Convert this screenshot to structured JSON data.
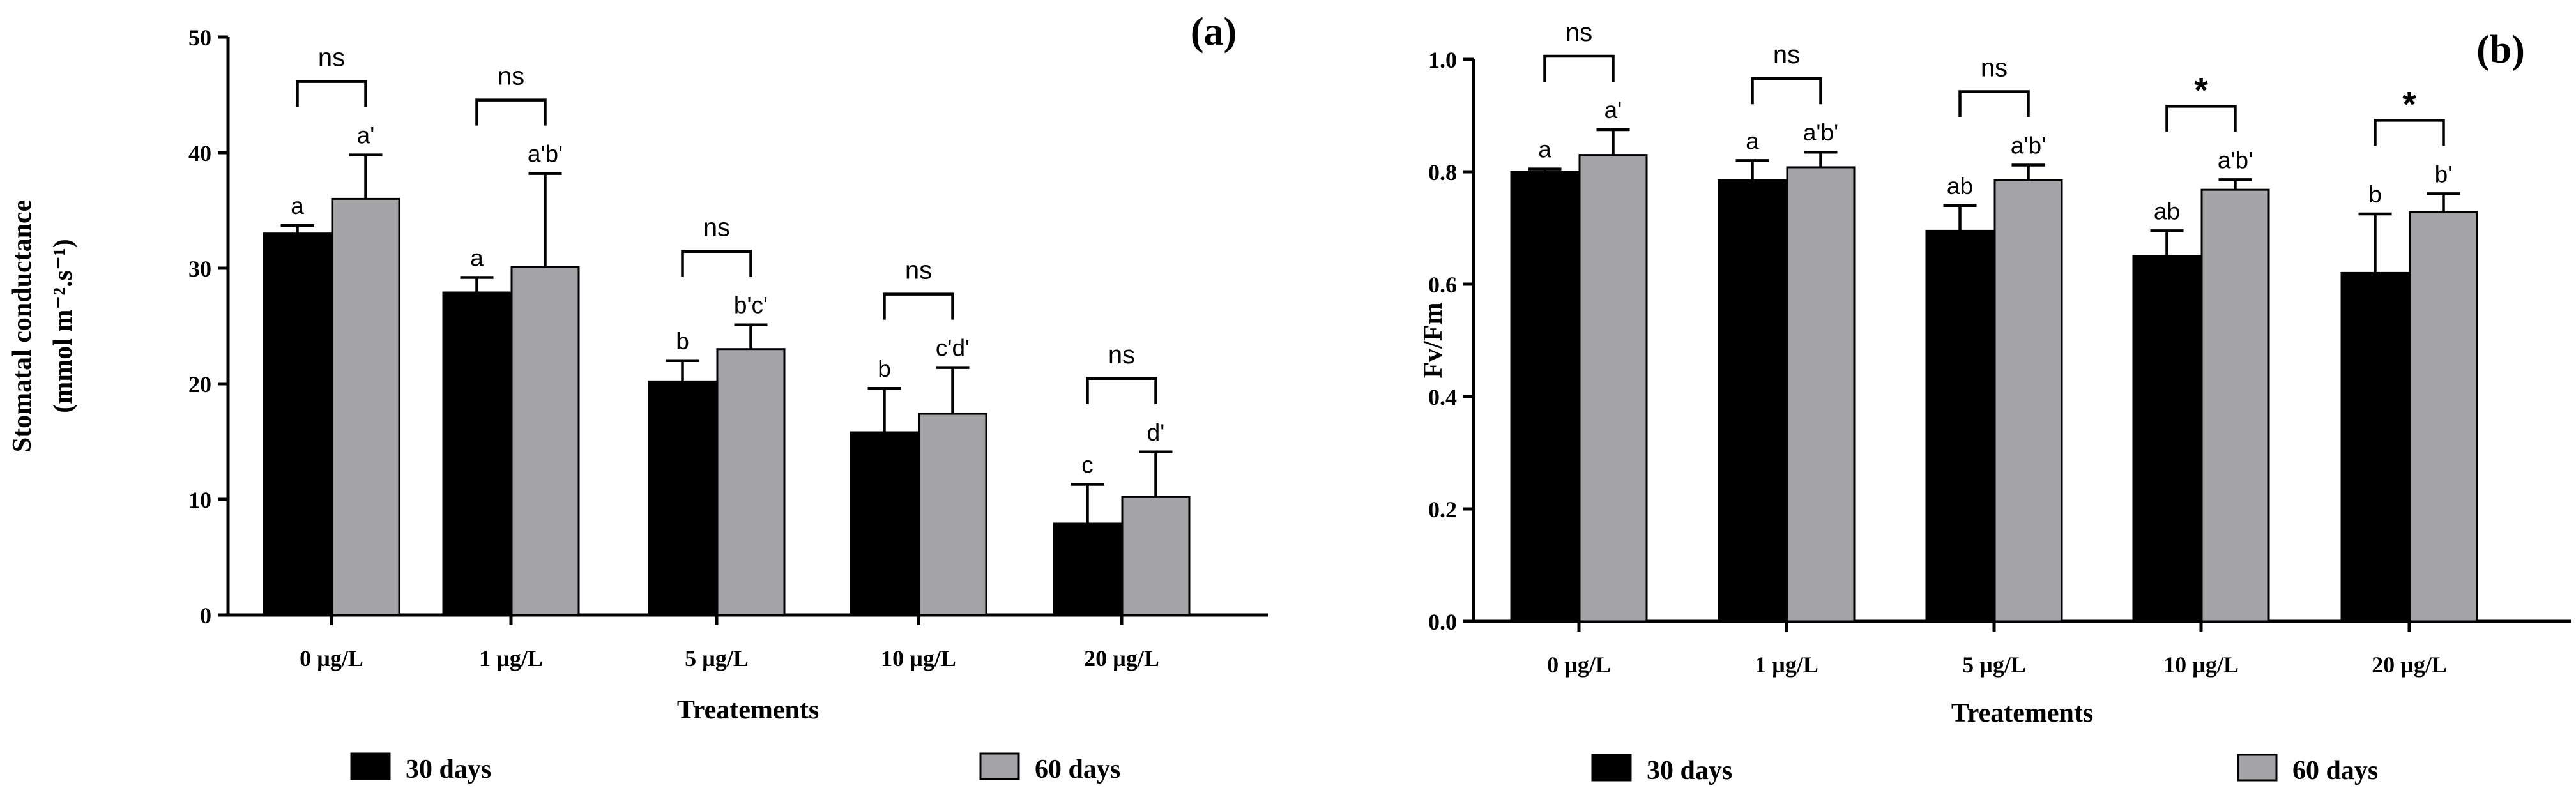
{
  "chart_data": [
    {
      "type": "bar",
      "panel_label": "(a)",
      "title": "",
      "xlabel": "Treatements",
      "ylabel": [
        "Stomatal conductance",
        "(mmol m⁻².s⁻¹)"
      ],
      "ylim": [
        0,
        50
      ],
      "yticks": [
        "0",
        "10",
        "20",
        "30",
        "40",
        "50"
      ],
      "categories": [
        "0 µg/L",
        "1 µg/L",
        "5 µg/L",
        "10 µg/L",
        "20 µg/L"
      ],
      "series": [
        {
          "name": "30 days",
          "color": "#000000",
          "values": [
            33.0,
            27.9,
            20.2,
            15.8,
            7.9
          ],
          "errors": [
            0.7,
            1.3,
            1.8,
            3.8,
            3.4
          ],
          "letters": [
            "a",
            "a",
            "b",
            "b",
            "c"
          ]
        },
        {
          "name": "60 days",
          "color": "#a4a4a8",
          "values": [
            36.0,
            30.1,
            23.0,
            17.4,
            10.2
          ],
          "errors": [
            3.8,
            8.1,
            2.1,
            4.0,
            3.9
          ],
          "letters": [
            "a'",
            "a'b'",
            "b'c'",
            "c'd'",
            "d'"
          ]
        }
      ],
      "significance": [
        "ns",
        "ns",
        "ns",
        "ns",
        "ns"
      ]
    },
    {
      "type": "bar",
      "panel_label": "(b)",
      "title": "",
      "xlabel": "Treatements",
      "ylabel": [
        "Fv/Fm"
      ],
      "ylim": [
        0,
        1
      ],
      "yticks": [
        "0.0",
        "0.2",
        "0.4",
        "0.6",
        "0.8",
        "1.0"
      ],
      "categories": [
        "0 µg/L",
        "1 µg/L",
        "5 µg/L",
        "10 µg/L",
        "20 µg/L"
      ],
      "series": [
        {
          "name": "30 days",
          "color": "#000000",
          "values": [
            0.8,
            0.785,
            0.695,
            0.65,
            0.62
          ],
          "errors": [
            0.005,
            0.035,
            0.045,
            0.045,
            0.105
          ],
          "letters": [
            "a",
            "a",
            "ab",
            "ab",
            "b"
          ]
        },
        {
          "name": "60 days",
          "color": "#a4a4a8",
          "values": [
            0.83,
            0.808,
            0.785,
            0.768,
            0.728
          ],
          "errors": [
            0.045,
            0.027,
            0.027,
            0.018,
            0.033
          ],
          "letters": [
            "a'",
            "a'b'",
            "a'b'",
            "a'b'",
            "b'"
          ]
        }
      ],
      "significance": [
        "ns",
        "ns",
        "ns",
        "*",
        "*"
      ]
    }
  ]
}
